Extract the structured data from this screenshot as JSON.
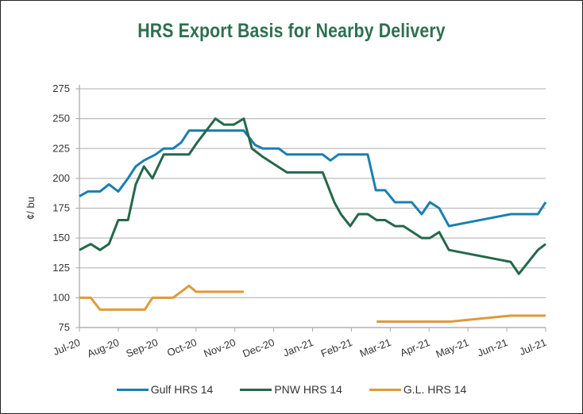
{
  "chart_data": {
    "type": "line",
    "title": "HRS Export Basis for Nearby Delivery",
    "xlabel": "",
    "ylabel": "¢/ bu",
    "ylim": [
      75,
      275
    ],
    "yticks": [
      "75",
      "100",
      "125",
      "150",
      "175",
      "200",
      "225",
      "250",
      "275"
    ],
    "categories": [
      "Jul-20",
      "Aug-20",
      "Sep-20",
      "Oct-20",
      "Nov-20",
      "Dec-20",
      "Jan-21",
      "Feb-21",
      "Mar-21",
      "Apr-21",
      "May-21",
      "Jun-21",
      "Jul-21"
    ],
    "grid": true,
    "legend_position": "bottom",
    "x_units": "months since Jul-20",
    "series": [
      {
        "name": "Gulf HRS 14",
        "color": "#1a7fb0",
        "segments": [
          [
            [
              0,
              185
            ],
            [
              0.22,
              189
            ],
            [
              0.53,
              189
            ],
            [
              0.76,
              195
            ],
            [
              1,
              189
            ],
            [
              1.25,
              200
            ],
            [
              1.45,
              210
            ],
            [
              1.66,
              215
            ],
            [
              1.96,
              220
            ],
            [
              2.17,
              225
            ],
            [
              2.41,
              225
            ],
            [
              2.62,
              230
            ],
            [
              2.82,
              240
            ],
            [
              4.23,
              240
            ],
            [
              4.52,
              228
            ],
            [
              4.72,
              225
            ],
            [
              5.13,
              225
            ],
            [
              5.34,
              220
            ],
            [
              6.26,
              220
            ],
            [
              6.46,
              215
            ],
            [
              6.67,
              220
            ],
            [
              7.42,
              220
            ],
            [
              7.63,
              190
            ],
            [
              7.87,
              190
            ],
            [
              8.12,
              180
            ],
            [
              8.55,
              180
            ],
            [
              8.81,
              170
            ],
            [
              9.02,
              180
            ],
            [
              9.26,
              175
            ],
            [
              9.51,
              160
            ],
            [
              11.1,
              170
            ],
            [
              11.8,
              170
            ],
            [
              12,
              180
            ]
          ]
        ]
      },
      {
        "name": "PNW HRS 14",
        "color": "#24684a",
        "segments": [
          [
            [
              0,
              140
            ],
            [
              0.29,
              145
            ],
            [
              0.53,
              140
            ],
            [
              0.76,
              145
            ],
            [
              1,
              165
            ],
            [
              1.25,
              165
            ],
            [
              1.45,
              195
            ],
            [
              1.66,
              210
            ],
            [
              1.88,
              200
            ],
            [
              2.17,
              220
            ],
            [
              2.82,
              220
            ],
            [
              3.03,
              230
            ],
            [
              3.5,
              250
            ],
            [
              3.72,
              245
            ],
            [
              3.97,
              245
            ],
            [
              4.23,
              250
            ],
            [
              4.44,
              225
            ],
            [
              4.72,
              218
            ],
            [
              5.34,
              205
            ],
            [
              6.26,
              205
            ],
            [
              6.56,
              180
            ],
            [
              6.73,
              170
            ],
            [
              6.97,
              160
            ],
            [
              7.18,
              170
            ],
            [
              7.42,
              170
            ],
            [
              7.65,
              165
            ],
            [
              7.87,
              165
            ],
            [
              8.12,
              160
            ],
            [
              8.34,
              160
            ],
            [
              8.81,
              150
            ],
            [
              9.02,
              150
            ],
            [
              9.26,
              155
            ],
            [
              9.51,
              140
            ],
            [
              11.1,
              130
            ],
            [
              11.31,
              120
            ],
            [
              11.8,
              140
            ],
            [
              12,
              145
            ]
          ]
        ]
      },
      {
        "name": "G.L. HRS 14",
        "color": "#e0993a",
        "segments": [
          [
            [
              0,
              100
            ],
            [
              0.29,
              100
            ],
            [
              0.53,
              90
            ],
            [
              1.68,
              90
            ],
            [
              1.88,
              100
            ],
            [
              2.41,
              100
            ],
            [
              2.62,
              105
            ],
            [
              2.82,
              110
            ],
            [
              3,
              105
            ],
            [
              4.23,
              105
            ]
          ],
          [
            [
              7.65,
              80
            ],
            [
              9.55,
              80
            ],
            [
              11.1,
              85
            ],
            [
              12,
              85
            ]
          ]
        ]
      }
    ]
  }
}
